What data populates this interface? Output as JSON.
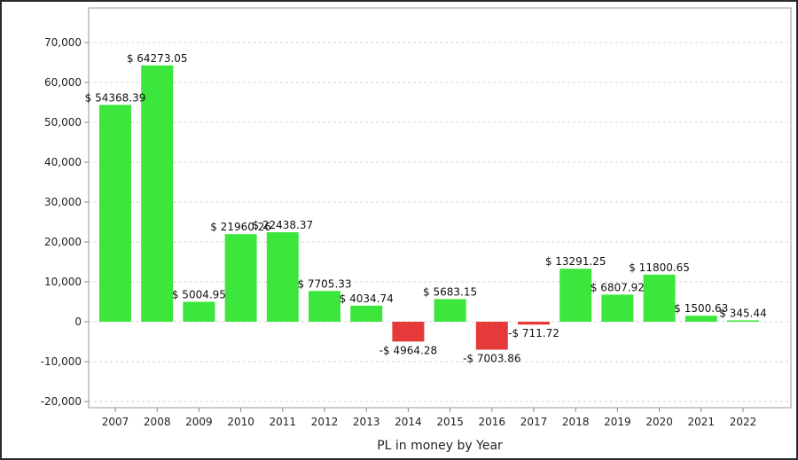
{
  "chart_data": {
    "type": "bar",
    "title": "",
    "xlabel": "PL in money by Year",
    "ylabel": "",
    "ylim": [
      -20000,
      75000
    ],
    "y_ticks": [
      -20000,
      -10000,
      0,
      10000,
      20000,
      30000,
      40000,
      50000,
      60000,
      70000
    ],
    "y_tick_labels": [
      "-20,000",
      "-10,000",
      "0",
      "10,000",
      "20,000",
      "30,000",
      "40,000",
      "50,000",
      "60,000",
      "70,000"
    ],
    "grid": true,
    "legend": "none",
    "categories": [
      "2007",
      "2008",
      "2009",
      "2010",
      "2011",
      "2012",
      "2013",
      "2014",
      "2015",
      "2016",
      "2017",
      "2018",
      "2019",
      "2020",
      "2021",
      "2022"
    ],
    "values": [
      54368.39,
      64273.05,
      5004.95,
      21960.26,
      22438.37,
      7705.33,
      4034.74,
      -4964.28,
      5683.15,
      -7003.86,
      -711.72,
      13291.25,
      6807.92,
      11800.65,
      1500.63,
      345.44
    ],
    "data_labels": [
      "$ 54368.39",
      "$ 64273.05",
      "$ 5004.95",
      "$ 21960.26",
      "$ 22438.37",
      "$ 7705.33",
      "$ 4034.74",
      "-$ 4964.28",
      "$ 5683.15",
      "-$ 7003.86",
      "-$ 711.72",
      "$ 13291.25",
      "$ 6807.92",
      "$ 11800.65",
      "$ 1500.63",
      "$ 345.44"
    ],
    "colors": {
      "positive": "#3de63d",
      "negative": "#e63a3a",
      "grid": "#d6d6d6",
      "axis": "#8a8a8a"
    }
  }
}
